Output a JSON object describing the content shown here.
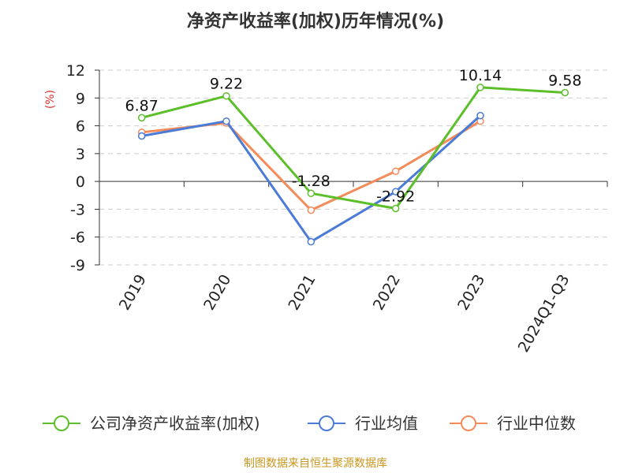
{
  "chart_data": {
    "type": "line",
    "title": "净资产收益率(加权)历年情况(%)",
    "ylabel": "(%)",
    "xlabel": "",
    "categories": [
      "2019",
      "2020",
      "2021",
      "2022",
      "2023",
      "2024Q1-Q3"
    ],
    "ylim": [
      -9,
      12
    ],
    "yticks": [
      12,
      9,
      6,
      3,
      0,
      -3,
      -6,
      -9
    ],
    "grid": true,
    "legend_position": "bottom",
    "series": [
      {
        "name": "公司净资产收益率(加权)",
        "color": "#5cbf2a",
        "values": [
          6.87,
          9.22,
          -1.28,
          -2.92,
          10.14,
          9.58
        ],
        "labels": [
          "6.87",
          "9.22",
          "-1.28",
          "-2.92",
          "10.14",
          "9.58"
        ]
      },
      {
        "name": "行业均值",
        "color": "#4a7bd6",
        "values": [
          4.9,
          6.5,
          -6.5,
          -1.1,
          7.1,
          null
        ]
      },
      {
        "name": "行业中位数",
        "color": "#f58a5a",
        "values": [
          5.3,
          6.3,
          -3.1,
          1.1,
          6.5,
          null
        ]
      }
    ],
    "source": "制图数据来自恒生聚源数据库"
  }
}
